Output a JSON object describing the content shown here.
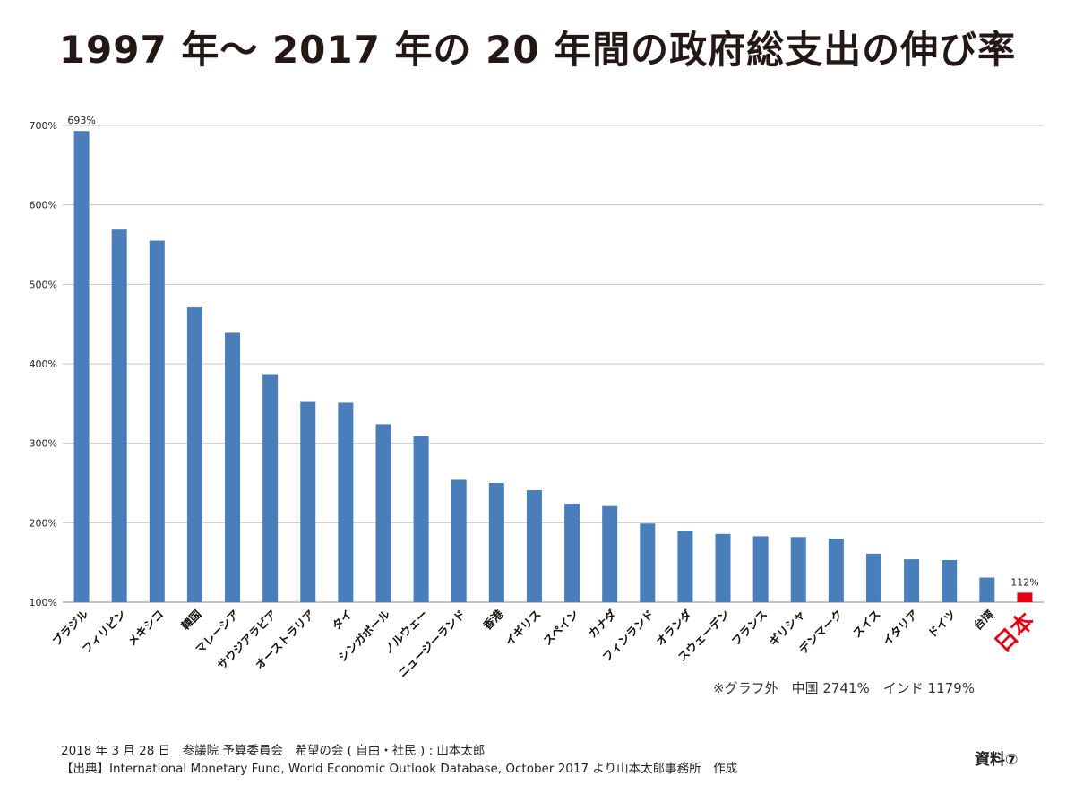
{
  "title": "1997 年〜 2017 年の 20 年間の政府総支出の伸び率",
  "chart_data": {
    "type": "bar",
    "categories": [
      "ブラジル",
      "フィリピン",
      "メキシコ",
      "韓国",
      "マレーシア",
      "サウジアラビア",
      "オーストラリア",
      "タイ",
      "シンガポール",
      "ノルウェー",
      "ニュージーランド",
      "香港",
      "イギリス",
      "スペイン",
      "カナダ",
      "フィンランド",
      "オランダ",
      "スウェーデン",
      "フランス",
      "ギリシャ",
      "デンマーク",
      "スイス",
      "イタリア",
      "ドイツ",
      "台湾",
      "日本"
    ],
    "values": [
      693,
      569,
      555,
      471,
      439,
      387,
      352,
      351,
      324,
      309,
      254,
      250,
      241,
      224,
      221,
      199,
      190,
      186,
      183,
      182,
      180,
      161,
      154,
      153,
      131,
      112
    ],
    "ylim": [
      100,
      700
    ],
    "yticks": [
      100,
      200,
      300,
      400,
      500,
      600,
      700
    ],
    "ytick_labels": [
      "100%",
      "200%",
      "300%",
      "400%",
      "500%",
      "600%",
      "700%"
    ],
    "grid": true,
    "bar_color": "#4a7ebb",
    "highlight_color": "#e60012",
    "highlight_index": 25,
    "data_labels": [
      {
        "index": 0,
        "text": "693%"
      },
      {
        "index": 25,
        "text": "112%"
      }
    ]
  },
  "outside_note": "※グラフ外　中国 2741%　インド 1179%",
  "footer": {
    "date_line": "2018 年 3 月 28 日　参議院 予算委員会　希望の会 ( 自由・社民 ) : 山本太郎",
    "source_line": "【出典】International Monetary Fund, World Economic Outlook Database, October 2017 より山本太郎事務所　作成"
  },
  "doc_label": "資料⑦"
}
